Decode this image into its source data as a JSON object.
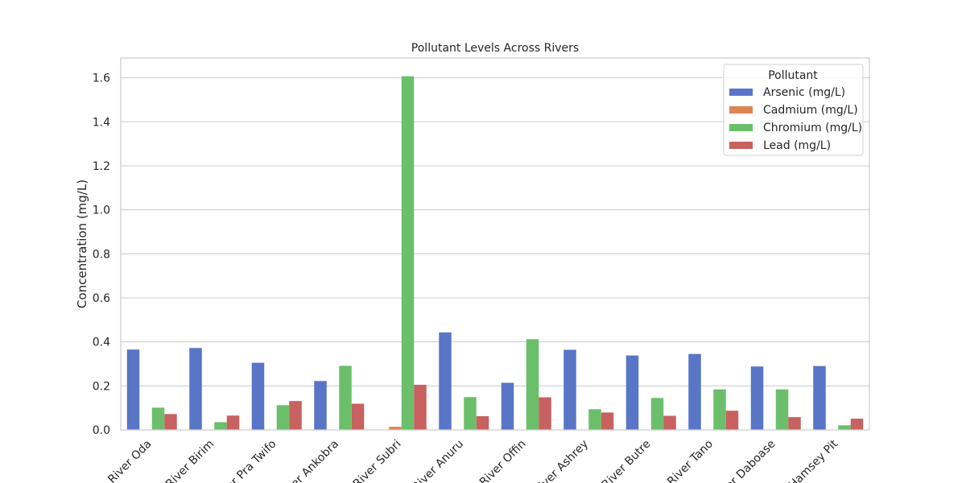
{
  "chart_data": {
    "type": "bar",
    "title": "Pollutant Levels Across Rivers",
    "xlabel": "",
    "ylabel": "Concentration (mg/L)",
    "ylim": [
      0,
      1.69
    ],
    "yticks": [
      "0.0",
      "0.2",
      "0.4",
      "0.6",
      "0.8",
      "1.0",
      "1.2",
      "1.4",
      "1.6"
    ],
    "grid": true,
    "legend_title": "Pollutant",
    "legend_position": "top-right",
    "categories": [
      "River Oda",
      "River Birim",
      "River Pra Twifo",
      "River Ankobra",
      "River Subri",
      "River Anuru",
      "River Offin",
      "River Ashrey",
      "River Butre",
      "River Tano",
      "River Daboase",
      "Hamsey Pit"
    ],
    "series": [
      {
        "name": "Arsenic (mg/L)",
        "color": "#5975c6",
        "values": [
          0.365,
          0.372,
          0.305,
          0.222,
          0.0,
          0.443,
          0.214,
          0.364,
          0.338,
          0.345,
          0.288,
          0.29
        ]
      },
      {
        "name": "Cadmium (mg/L)",
        "color": "#dd8452",
        "values": [
          0.0,
          0.0,
          0.0,
          0.0,
          0.014,
          0.0,
          0.0,
          0.0,
          0.0,
          0.0,
          0.0,
          0.0
        ]
      },
      {
        "name": "Chromium (mg/L)",
        "color": "#6bbf6b",
        "values": [
          0.101,
          0.035,
          0.112,
          0.291,
          1.607,
          0.149,
          0.412,
          0.094,
          0.145,
          0.184,
          0.184,
          0.021
        ]
      },
      {
        "name": "Lead (mg/L)",
        "color": "#c8615f",
        "values": [
          0.072,
          0.065,
          0.131,
          0.119,
          0.205,
          0.062,
          0.148,
          0.079,
          0.064,
          0.087,
          0.058,
          0.051
        ]
      }
    ]
  }
}
